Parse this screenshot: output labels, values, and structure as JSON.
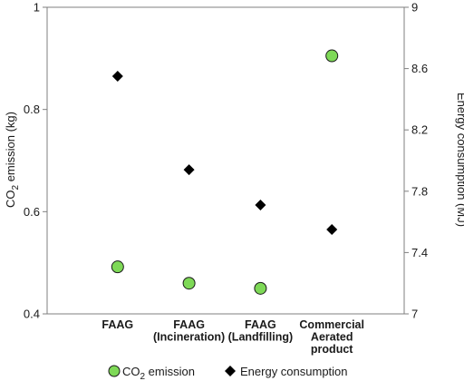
{
  "chart_data": {
    "type": "scatter",
    "categories": [
      [
        "FAAG"
      ],
      [
        "FAAG",
        "(Incineration)"
      ],
      [
        "FAAG",
        "(Landfilling)"
      ],
      [
        "Commercial",
        "Aerated",
        "product"
      ]
    ],
    "y_left": {
      "label_prefix": "CO",
      "label_sub": "2",
      "label_suffix": " emission (kg)",
      "range": [
        0.4,
        1.0
      ],
      "ticks": [
        0.4,
        0.6,
        0.8,
        1
      ],
      "tick_labels": [
        "0.4",
        "0.6",
        "0.8",
        "1"
      ]
    },
    "y_right": {
      "label": "Energy consumption (MJ)",
      "range": [
        7.0,
        9.0
      ],
      "ticks": [
        7,
        7.4,
        7.8,
        8.2,
        8.6,
        9
      ],
      "tick_labels": [
        "7",
        "7.4",
        "7.8",
        "8.2",
        "8.6",
        "9"
      ]
    },
    "series": [
      {
        "legend_prefix": "CO",
        "legend_sub": "2",
        "legend_suffix": " emission",
        "axis": "left",
        "marker": "circle",
        "color": "#7ed957",
        "values": [
          0.492,
          0.46,
          0.45,
          0.905
        ]
      },
      {
        "legend": "Energy consumption",
        "axis": "right",
        "marker": "diamond",
        "color": "#000000",
        "values": [
          8.55,
          7.94,
          7.71,
          7.55
        ]
      }
    ],
    "grid": false,
    "legend_position": "bottom"
  }
}
